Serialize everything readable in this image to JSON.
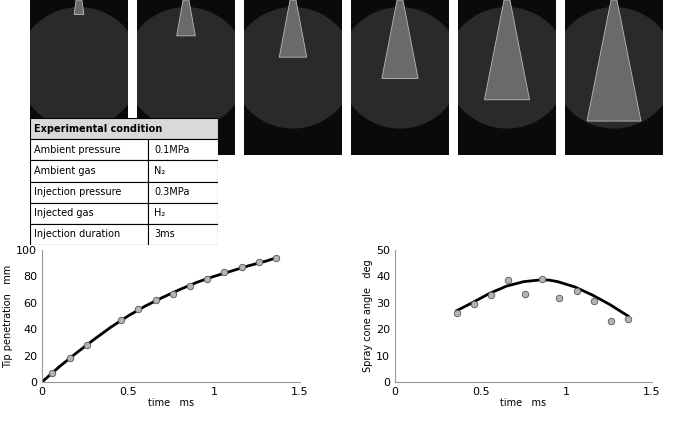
{
  "table": {
    "header": "Experimental condition",
    "rows": [
      [
        "Ambient pressure",
        "0.1MPa"
      ],
      [
        "Ambient gas",
        "N₂"
      ],
      [
        "Injection pressure",
        "0.3MPa"
      ],
      [
        "Injected gas",
        "H₂"
      ],
      [
        "Injection duration",
        "3ms"
      ]
    ]
  },
  "chart_data": [
    {
      "type": "scatter",
      "x_label": "time   ms",
      "y_label": "Tip penetration   mm",
      "xlim": [
        0,
        1.5
      ],
      "xticks": [
        0,
        0.5,
        1,
        1.5
      ],
      "ylim": [
        0,
        100
      ],
      "yticks": [
        0,
        20,
        40,
        60,
        80,
        100
      ],
      "grid": false,
      "series": [
        {
          "type": "scatter",
          "marker": "o",
          "color": "#b4b4b4",
          "x": [
            0.06,
            0.16,
            0.26,
            0.46,
            0.56,
            0.66,
            0.76,
            0.86,
            0.96,
            1.06,
            1.16,
            1.26,
            1.36
          ],
          "values": [
            7,
            18.5,
            28,
            47,
            55,
            62,
            66.5,
            72.5,
            78,
            83,
            87.5,
            91,
            94
          ]
        },
        {
          "type": "line",
          "line_style": "solid",
          "color": "#000000",
          "x": [
            0,
            0.1,
            0.2,
            0.3,
            0.4,
            0.5,
            0.6,
            0.7,
            0.8,
            0.9,
            1.0,
            1.1,
            1.2,
            1.3,
            1.36
          ],
          "values": [
            0,
            11.5,
            22,
            32,
            41.5,
            50,
            57.5,
            64,
            70,
            75.5,
            80,
            84,
            88,
            91.5,
            94
          ]
        }
      ]
    },
    {
      "type": "scatter",
      "x_label": "time   ms",
      "y_label": "Spray cone angle   deg",
      "xlim": [
        0,
        1.5
      ],
      "xticks": [
        0,
        0.5,
        1,
        1.5
      ],
      "ylim": [
        0,
        50
      ],
      "yticks": [
        0,
        10,
        20,
        30,
        40,
        50
      ],
      "grid": false,
      "series": [
        {
          "type": "scatter",
          "marker": "o",
          "color": "#b4b4b4",
          "x": [
            0.36,
            0.46,
            0.56,
            0.66,
            0.76,
            0.86,
            0.96,
            1.06,
            1.16,
            1.26,
            1.36
          ],
          "values": [
            26,
            29.5,
            33,
            38.5,
            33.5,
            39,
            32,
            34.5,
            30.5,
            23,
            24
          ]
        },
        {
          "type": "line",
          "line_style": "solid",
          "color": "#000000",
          "x": [
            0.36,
            0.45,
            0.55,
            0.65,
            0.75,
            0.85,
            0.9,
            0.95,
            1.05,
            1.15,
            1.25,
            1.36
          ],
          "values": [
            27,
            30,
            33.5,
            36.3,
            38,
            38.7,
            38.6,
            38,
            36,
            33,
            29.5,
            25
          ]
        }
      ]
    }
  ]
}
